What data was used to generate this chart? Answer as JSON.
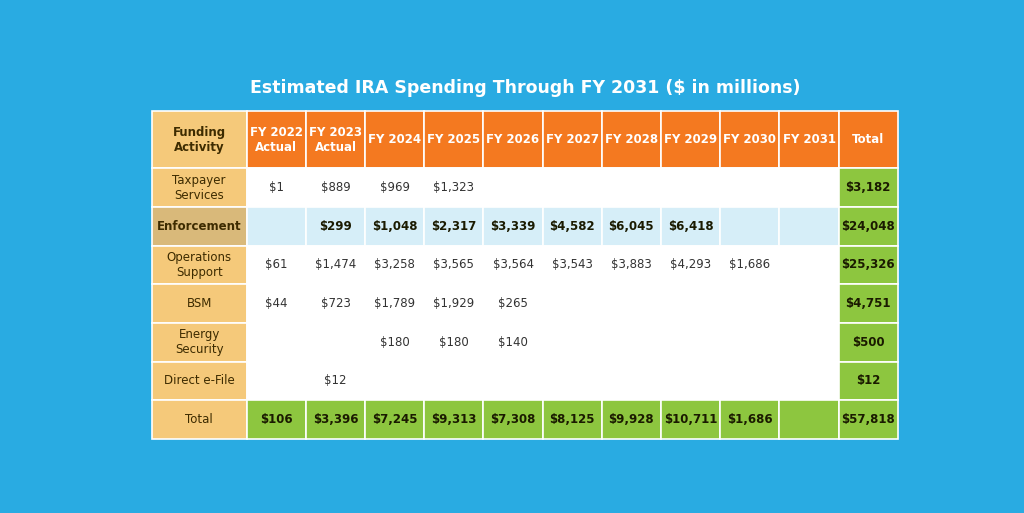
{
  "title": "Estimated IRA Spending Through FY 2031 ($ in millions)",
  "bg_color": "#29ABE2",
  "header_row_color": "#F47920",
  "label_col_color": "#F5C97A",
  "enforcement_label_color": "#D9B97A",
  "highlight_row_color": "#D6EEF8",
  "green_color": "#8DC63F",
  "col_headers": [
    "Funding\nActivity",
    "FY 2022\nActual",
    "FY 2023\nActual",
    "FY 2024",
    "FY 2025",
    "FY 2026",
    "FY 2027",
    "FY 2028",
    "FY 2029",
    "FY 2030",
    "FY 2031",
    "Total"
  ],
  "rows": [
    {
      "label": "Taxpayer\nServices",
      "values": [
        "$1",
        "$889",
        "$969",
        "$1,323",
        "",
        "",
        "",
        "",
        "",
        "",
        "$3,182"
      ],
      "row_bg": "#FFFFFF",
      "bold_label": false,
      "is_enforcement": false,
      "is_total": false
    },
    {
      "label": "Enforcement",
      "values": [
        "",
        "$299",
        "$1,048",
        "$2,317",
        "$3,339",
        "$4,582",
        "$6,045",
        "$6,418",
        "",
        "",
        "$24,048"
      ],
      "row_bg": "#D6EEF8",
      "bold_label": true,
      "is_enforcement": true,
      "is_total": false
    },
    {
      "label": "Operations\nSupport",
      "values": [
        "$61",
        "$1,474",
        "$3,258",
        "$3,565",
        "$3,564",
        "$3,543",
        "$3,883",
        "$4,293",
        "$1,686",
        "",
        "$25,326"
      ],
      "row_bg": "#FFFFFF",
      "bold_label": false,
      "is_enforcement": false,
      "is_total": false
    },
    {
      "label": "BSM",
      "values": [
        "$44",
        "$723",
        "$1,789",
        "$1,929",
        "$265",
        "",
        "",
        "",
        "",
        "",
        "$4,751"
      ],
      "row_bg": "#FFFFFF",
      "bold_label": false,
      "is_enforcement": false,
      "is_total": false
    },
    {
      "label": "Energy\nSecurity",
      "values": [
        "",
        "",
        "$180",
        "$180",
        "$140",
        "",
        "",
        "",
        "",
        "",
        "$500"
      ],
      "row_bg": "#FFFFFF",
      "bold_label": false,
      "is_enforcement": false,
      "is_total": false
    },
    {
      "label": "Direct e-File",
      "values": [
        "",
        "$12",
        "",
        "",
        "",
        "",
        "",
        "",
        "",
        "",
        "$12"
      ],
      "row_bg": "#FFFFFF",
      "bold_label": false,
      "is_enforcement": false,
      "is_total": false
    },
    {
      "label": "Total",
      "values": [
        "$106",
        "$3,396",
        "$7,245",
        "$9,313",
        "$7,308",
        "$8,125",
        "$9,928",
        "$10,711",
        "$1,686",
        "",
        "$57,818"
      ],
      "row_bg": "#8DC63F",
      "bold_label": false,
      "is_enforcement": false,
      "is_total": true
    }
  ]
}
